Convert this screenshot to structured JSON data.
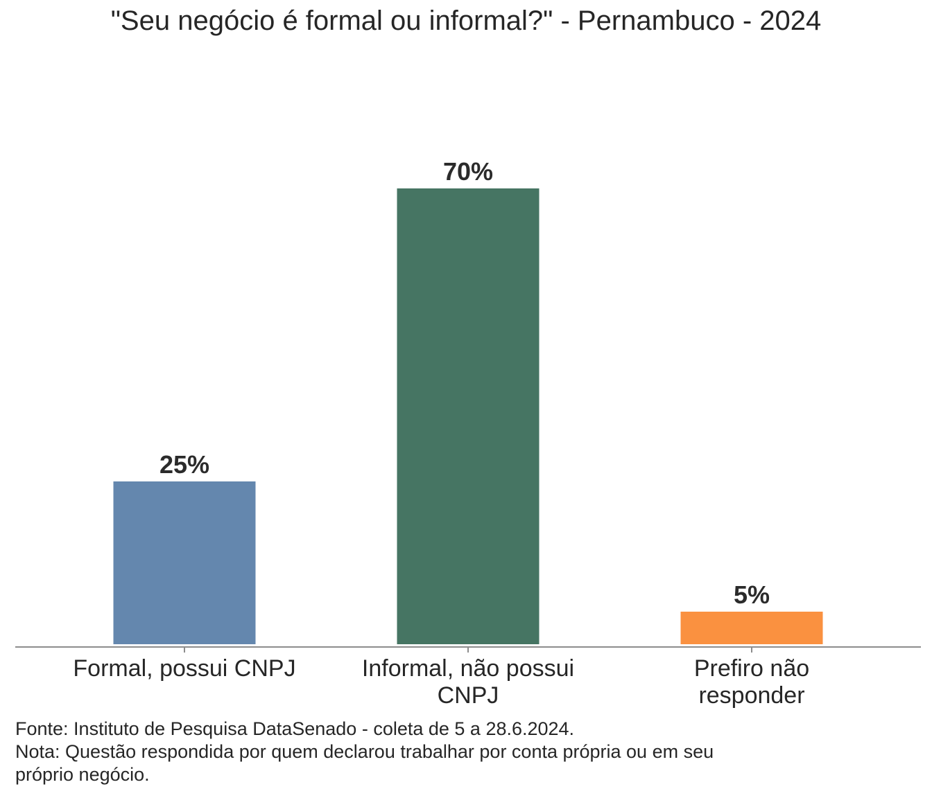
{
  "chart_data": {
    "type": "bar",
    "title": "\"Seu negócio é formal ou informal?\" - Pernambuco - 2024",
    "categories": [
      [
        "Formal, possui CNPJ"
      ],
      [
        "Informal, não possui",
        "CNPJ"
      ],
      [
        "Prefiro não",
        "responder"
      ]
    ],
    "values": [
      25,
      70,
      5
    ],
    "value_labels": [
      "25%",
      "70%",
      "5%"
    ],
    "colors": [
      "#6487ae",
      "#467563",
      "#fa9140"
    ],
    "ylim": [
      0,
      70
    ],
    "grid": false,
    "legend": "none"
  },
  "footnotes": {
    "source": "Fonte: Instituto de Pesquisa DataSenado - coleta de 5 a 28.6.2024.",
    "note_line1": "Nota: Questão respondida por quem declarou trabalhar por conta própria ou em seu",
    "note_line2": "próprio negócio."
  }
}
